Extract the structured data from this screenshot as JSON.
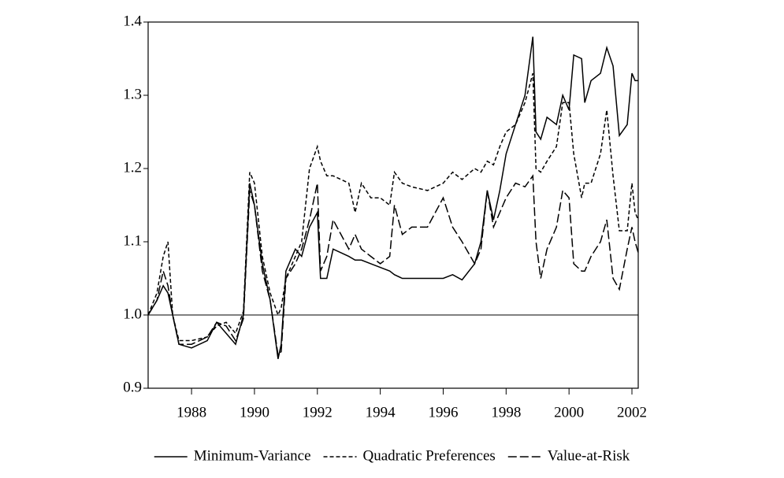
{
  "chart_data": {
    "type": "line",
    "x": [
      1986.62,
      1986.9,
      1987.1,
      1987.25,
      1987.4,
      1987.6,
      1988.0,
      1988.5,
      1988.8,
      1989.1,
      1989.4,
      1989.65,
      1989.85,
      1990.0,
      1990.25,
      1990.5,
      1990.75,
      1990.85,
      1991.0,
      1991.3,
      1991.5,
      1991.75,
      1992.0,
      1992.1,
      1992.3,
      1992.5,
      1993.0,
      1993.2,
      1993.4,
      1993.7,
      1994.0,
      1994.3,
      1994.45,
      1994.7,
      1995.0,
      1995.5,
      1996.0,
      1996.3,
      1996.6,
      1997.0,
      1997.2,
      1997.4,
      1997.6,
      1997.8,
      1998.0,
      1998.3,
      1998.6,
      1998.85,
      1998.95,
      1999.1,
      1999.3,
      1999.6,
      1999.8,
      2000.0,
      2000.15,
      2000.4,
      2000.5,
      2000.7,
      2001.0,
      2001.2,
      2001.4,
      2001.6,
      2001.85,
      2002.0,
      2002.1,
      2002.2
    ],
    "series": [
      {
        "name": "Minimum-Variance",
        "color": "#000000",
        "style": "solid",
        "values": [
          1.0,
          1.02,
          1.04,
          1.03,
          1.0,
          0.96,
          0.955,
          0.965,
          0.99,
          0.975,
          0.96,
          1.0,
          1.18,
          1.15,
          1.07,
          1.02,
          0.94,
          0.96,
          1.06,
          1.09,
          1.08,
          1.12,
          1.14,
          1.05,
          1.05,
          1.09,
          1.08,
          1.075,
          1.075,
          1.07,
          1.065,
          1.06,
          1.055,
          1.05,
          1.05,
          1.05,
          1.05,
          1.055,
          1.048,
          1.07,
          1.1,
          1.17,
          1.13,
          1.17,
          1.22,
          1.26,
          1.3,
          1.38,
          1.25,
          1.24,
          1.27,
          1.26,
          1.3,
          1.28,
          1.355,
          1.35,
          1.29,
          1.32,
          1.33,
          1.365,
          1.34,
          1.245,
          1.26,
          1.33,
          1.32,
          1.32
        ]
      },
      {
        "name": "Quadratic Preferences",
        "color": "#000000",
        "style": "short-dash",
        "values": [
          1.0,
          1.03,
          1.08,
          1.1,
          1.0,
          0.965,
          0.965,
          0.97,
          0.985,
          0.99,
          0.975,
          1.005,
          1.195,
          1.18,
          1.08,
          1.03,
          1.0,
          1.01,
          1.05,
          1.08,
          1.1,
          1.2,
          1.23,
          1.21,
          1.19,
          1.19,
          1.18,
          1.14,
          1.18,
          1.16,
          1.16,
          1.15,
          1.195,
          1.18,
          1.175,
          1.17,
          1.18,
          1.195,
          1.185,
          1.2,
          1.195,
          1.21,
          1.205,
          1.23,
          1.25,
          1.26,
          1.29,
          1.33,
          1.2,
          1.195,
          1.21,
          1.23,
          1.29,
          1.29,
          1.22,
          1.16,
          1.18,
          1.18,
          1.22,
          1.28,
          1.19,
          1.115,
          1.115,
          1.18,
          1.14,
          1.13
        ]
      },
      {
        "name": "Value-at-Risk",
        "color": "#000000",
        "style": "long-dash",
        "values": [
          1.0,
          1.02,
          1.06,
          1.04,
          1.0,
          0.96,
          0.96,
          0.97,
          0.99,
          0.985,
          0.965,
          0.995,
          1.17,
          1.15,
          1.06,
          1.02,
          0.945,
          0.95,
          1.05,
          1.07,
          1.09,
          1.13,
          1.18,
          1.06,
          1.08,
          1.13,
          1.09,
          1.11,
          1.09,
          1.08,
          1.07,
          1.08,
          1.15,
          1.11,
          1.12,
          1.12,
          1.16,
          1.12,
          1.1,
          1.07,
          1.09,
          1.17,
          1.12,
          1.14,
          1.16,
          1.18,
          1.175,
          1.19,
          1.1,
          1.05,
          1.09,
          1.12,
          1.17,
          1.16,
          1.07,
          1.06,
          1.06,
          1.08,
          1.1,
          1.13,
          1.05,
          1.035,
          1.09,
          1.12,
          1.1,
          1.085
        ]
      }
    ],
    "xlim": [
      1986.62,
      2002.2
    ],
    "xticks": [
      1988,
      1990,
      1992,
      1994,
      1996,
      1998,
      2000,
      2002
    ],
    "ylim": [
      0.9,
      1.4
    ],
    "yticks": [
      {
        "value": 0.9,
        "label": "0.9"
      },
      {
        "value": 1.0,
        "label": "1.0"
      },
      1.1,
      1.2,
      1.3,
      1.4
    ],
    "hline": 1.0,
    "legend": "bottom"
  }
}
